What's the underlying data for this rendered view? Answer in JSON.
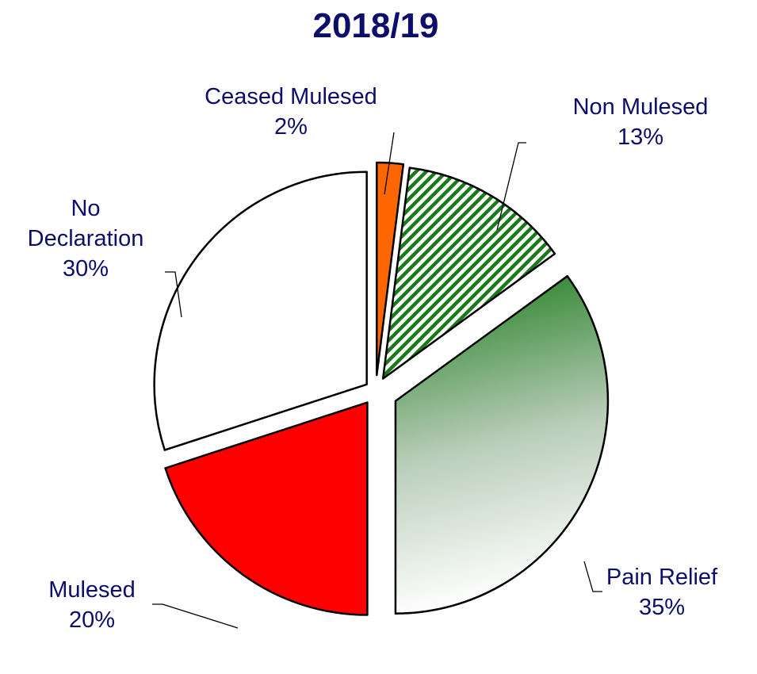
{
  "chart_data": {
    "type": "pie",
    "title": "2018/19",
    "slices": [
      {
        "name": "Ceased Mulesed",
        "value": 2,
        "label_lines": [
          "Ceased Mulesed"
        ],
        "percent_label": "2%",
        "fill": "#ff6600",
        "pattern": "solid"
      },
      {
        "name": "Non Mulesed",
        "value": 13,
        "label_lines": [
          "Non Mulesed"
        ],
        "percent_label": "13%",
        "fill": "#1a7a1a",
        "pattern": "diagonal-stripes"
      },
      {
        "name": "Pain Relief",
        "value": 35,
        "label_lines": [
          "Pain Relief"
        ],
        "percent_label": "35%",
        "fill": "#1a7a1a",
        "pattern": "gradient-to-white"
      },
      {
        "name": "Mulesed",
        "value": 20,
        "label_lines": [
          "Mulesed"
        ],
        "percent_label": "20%",
        "fill": "#ff0000",
        "pattern": "solid"
      },
      {
        "name": "No Declaration",
        "value": 30,
        "label_lines": [
          "No",
          "Declaration"
        ],
        "percent_label": "30%",
        "fill": "#ffffff",
        "pattern": "solid"
      }
    ],
    "label_color": "#0d0d6b",
    "outline_color": "#000000",
    "legend": "none",
    "exploded": true
  }
}
